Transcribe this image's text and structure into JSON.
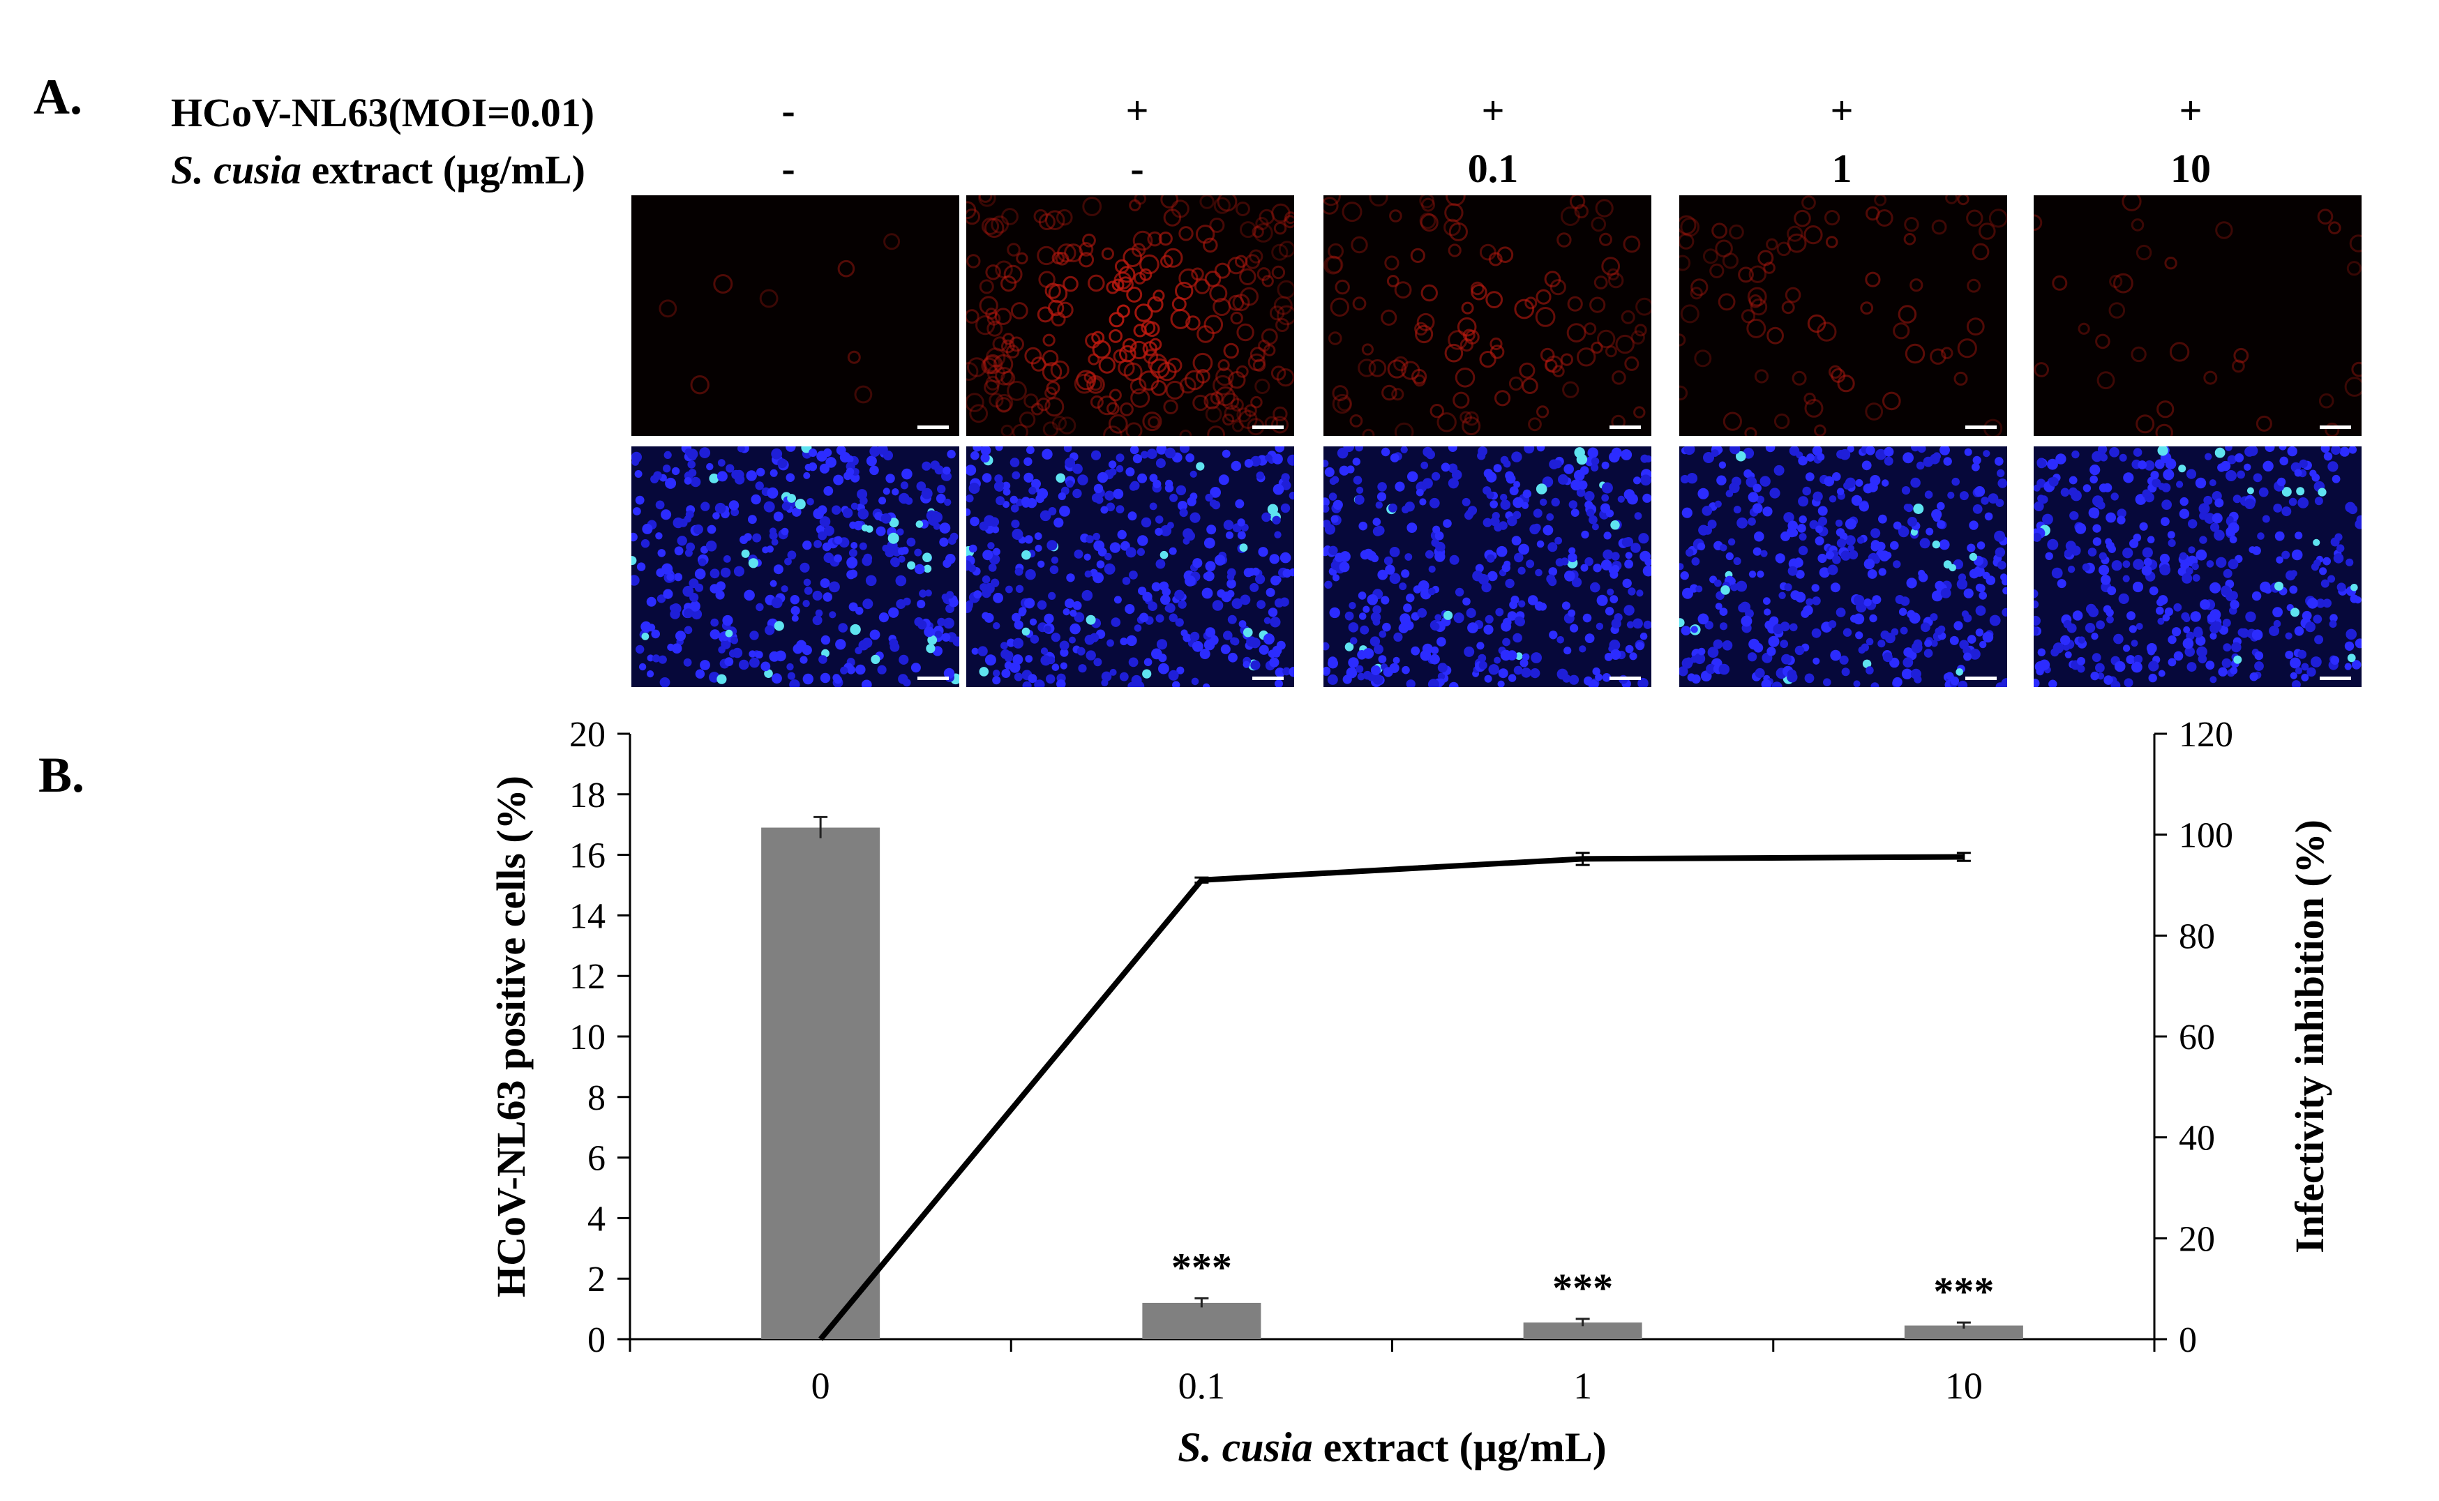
{
  "panel_a": {
    "label": "A.",
    "row1_label": "HCoV-NL63(MOI=0.01)",
    "row2_label_italic": "S. cusia",
    "row2_label_rest": " extract (µg/mL)",
    "virus_signs": [
      "-",
      "+",
      "+",
      "+",
      "+"
    ],
    "extract_doses": [
      "-",
      "-",
      "0.1",
      "1",
      "10"
    ],
    "red_channel_intensity": [
      0.03,
      0.95,
      0.45,
      0.3,
      0.12
    ]
  },
  "panel_b": {
    "label": "B.",
    "significance": [
      "",
      "***",
      "***",
      "***"
    ]
  },
  "chart_data": {
    "type": "bar",
    "categories": [
      "0",
      "0.1",
      "1",
      "10"
    ],
    "xlabel_italic": "S. cusia",
    "xlabel_rest": " extract (µg/mL)",
    "ylabel": "HCoV-NL63 positive cells (%)",
    "ylabel_right": "Infectivity inhibition (%)",
    "ylim": [
      0,
      20
    ],
    "yticks": [
      "0",
      "2",
      "4",
      "6",
      "8",
      "10",
      "12",
      "14",
      "16",
      "18",
      "20"
    ],
    "ylim_right": [
      0,
      120
    ],
    "yticks_right": [
      "0",
      "20",
      "40",
      "60",
      "80",
      "100",
      "120"
    ],
    "series": [
      {
        "type": "bar",
        "axis": "left",
        "values": [
          16.9,
          1.2,
          0.55,
          0.45
        ],
        "errors": [
          0.35,
          0.15,
          0.12,
          0.1
        ],
        "color": "#808080"
      },
      {
        "type": "line",
        "axis": "right",
        "values": [
          0,
          91,
          95.2,
          95.6
        ],
        "errors": [
          0,
          0.5,
          1.2,
          0.8
        ],
        "color": "#000000"
      }
    ]
  }
}
